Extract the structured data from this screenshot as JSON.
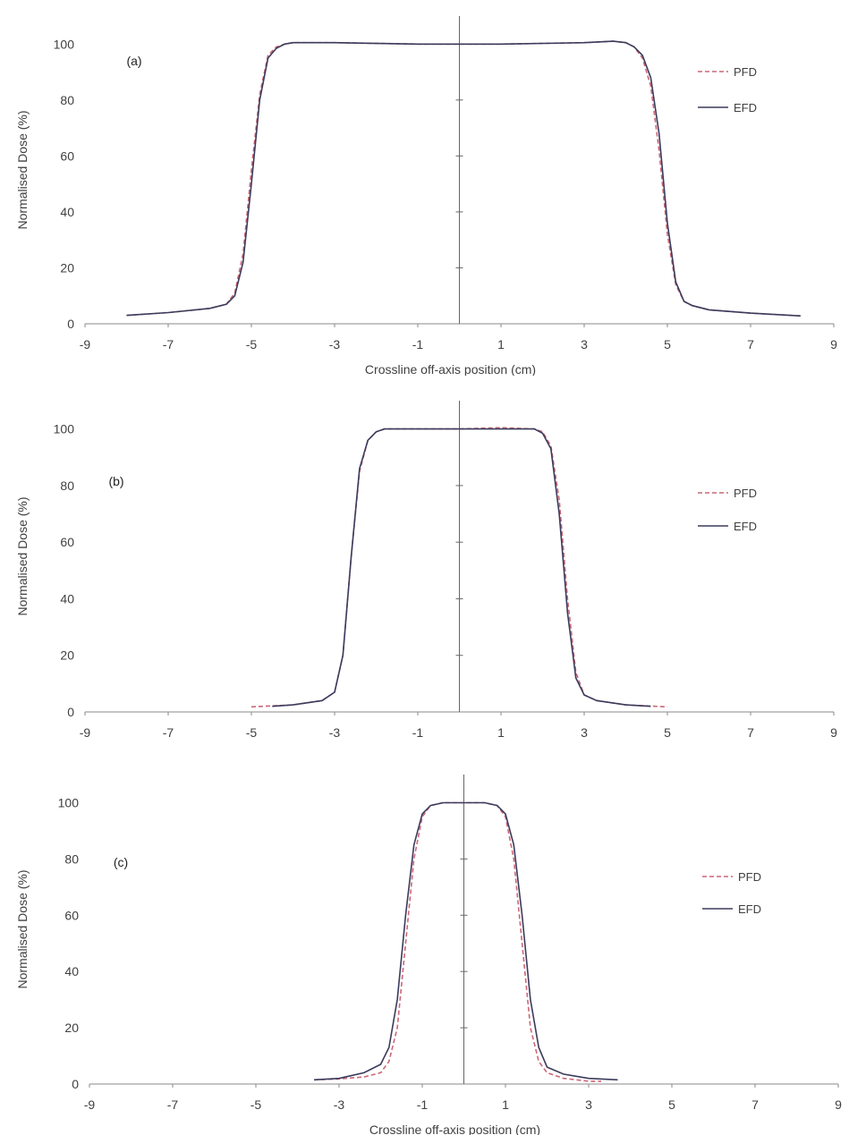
{
  "figure": {
    "panels": [
      {
        "label": "(a)",
        "xlabel": "Crossline off-axis position (cm)",
        "ylabel": "Normalised Dose (%)"
      },
      {
        "label": "(b)",
        "xlabel": "Crossline off-axis position (cm)",
        "ylabel": "Normalised Dose (%)"
      },
      {
        "label": "(c)",
        "xlabel": "Crossline off-axis position (cm)",
        "ylabel": "Normalised Dose (%)"
      }
    ]
  },
  "colors": {
    "pfd": "#cc6677",
    "efd": "#3b3b5c",
    "axis": "#888888"
  },
  "chart_data": [
    {
      "type": "line",
      "title": "(a)",
      "xlabel": "Crossline off-axis position (cm)",
      "ylabel": "Normalised Dose (%)",
      "xlim": [
        -9,
        9
      ],
      "ylim": [
        0,
        100
      ],
      "xticks": [
        -9,
        -7,
        -5,
        -3,
        -1,
        1,
        3,
        5,
        7,
        9
      ],
      "yticks": [
        0,
        20,
        40,
        60,
        80,
        100
      ],
      "legend": "right",
      "series": [
        {
          "name": "PFD",
          "style": "dashed",
          "x": [
            -8,
            -7,
            -6,
            -5.6,
            -5.4,
            -5.2,
            -5.0,
            -4.8,
            -4.6,
            -4.4,
            -4.2,
            -4.0,
            -3,
            -1,
            0,
            1,
            3,
            3.7,
            4.0,
            4.2,
            4.4,
            4.6,
            4.8,
            5.0,
            5.2,
            5.4,
            5.6,
            6,
            7,
            8.2
          ],
          "y": [
            3,
            4,
            5.5,
            7,
            11,
            25,
            55,
            82,
            96,
            99,
            100,
            100.5,
            100.5,
            100,
            100,
            100,
            100.5,
            101,
            100.5,
            99,
            95,
            85,
            62,
            32,
            14,
            8,
            6.5,
            5,
            3.8,
            2.8
          ]
        },
        {
          "name": "EFD",
          "style": "solid",
          "x": [
            -8,
            -7,
            -6,
            -5.6,
            -5.4,
            -5.2,
            -5.0,
            -4.8,
            -4.6,
            -4.4,
            -4.2,
            -4.0,
            -3,
            -1,
            0,
            1,
            3,
            3.7,
            4.0,
            4.2,
            4.4,
            4.6,
            4.8,
            5.0,
            5.2,
            5.4,
            5.6,
            6,
            7,
            8.2
          ],
          "y": [
            3,
            4,
            5.5,
            7,
            10,
            22,
            50,
            80,
            95,
            98.5,
            100,
            100.5,
            100.5,
            100,
            100,
            100,
            100.5,
            101,
            100.5,
            99,
            96,
            88,
            68,
            36,
            15,
            8,
            6.5,
            5,
            3.8,
            2.8
          ]
        }
      ]
    },
    {
      "type": "line",
      "title": "(b)",
      "xlabel": "Crossline off-axis position (cm)",
      "ylabel": "Normalised Dose (%)",
      "xlim": [
        -9,
        9
      ],
      "ylim": [
        0,
        100
      ],
      "xticks": [
        -9,
        -7,
        -5,
        -3,
        -1,
        1,
        3,
        5,
        7,
        9
      ],
      "yticks": [
        0,
        20,
        40,
        60,
        80,
        100
      ],
      "legend": "right",
      "series": [
        {
          "name": "PFD",
          "style": "dashed",
          "x": [
            -5,
            -4,
            -3.3,
            -3.0,
            -2.8,
            -2.6,
            -2.4,
            -2.2,
            -2.0,
            -1.8,
            -1,
            0,
            1,
            1.8,
            2.0,
            2.2,
            2.4,
            2.6,
            2.8,
            3.0,
            3.3,
            4,
            5
          ],
          "y": [
            1.8,
            2.5,
            4,
            7,
            20,
            55,
            85,
            96,
            99,
            100,
            100,
            100,
            100.5,
            100,
            99,
            94,
            75,
            40,
            14,
            6,
            4,
            2.5,
            1.8
          ]
        },
        {
          "name": "EFD",
          "style": "solid",
          "x": [
            -4.5,
            -4,
            -3.3,
            -3.0,
            -2.8,
            -2.6,
            -2.4,
            -2.2,
            -2.0,
            -1.8,
            -1,
            0,
            1,
            1.8,
            2.0,
            2.2,
            2.4,
            2.6,
            2.8,
            3.0,
            3.3,
            4,
            4.6
          ],
          "y": [
            2,
            2.5,
            4,
            7,
            20,
            55,
            86,
            96,
            99,
            100,
            100,
            100,
            100,
            100,
            98.5,
            93,
            70,
            35,
            12,
            6,
            4,
            2.5,
            2
          ]
        }
      ]
    },
    {
      "type": "line",
      "title": "(c)",
      "xlabel": "Crossline off-axis position (cm)",
      "ylabel": "Normalised Dose (%)",
      "xlim": [
        -9,
        9
      ],
      "ylim": [
        0,
        100
      ],
      "xticks": [
        -9,
        -7,
        -5,
        -3,
        -1,
        1,
        3,
        5,
        7,
        9
      ],
      "yticks": [
        0,
        20,
        40,
        60,
        80,
        100
      ],
      "legend": "right",
      "series": [
        {
          "name": "PFD",
          "style": "dashed",
          "x": [
            -3.6,
            -3,
            -2.4,
            -2.0,
            -1.8,
            -1.6,
            -1.4,
            -1.2,
            -1.0,
            -0.8,
            -0.5,
            0,
            0.5,
            0.8,
            1.0,
            1.2,
            1.4,
            1.6,
            1.8,
            2.0,
            2.4,
            3,
            3.3
          ],
          "y": [
            1.5,
            1.8,
            2.5,
            4,
            8,
            20,
            50,
            80,
            95,
            99,
            100,
            100,
            100,
            99,
            95,
            80,
            50,
            20,
            8,
            4,
            2,
            1,
            1
          ]
        },
        {
          "name": "EFD",
          "style": "solid",
          "x": [
            -3.6,
            -3,
            -2.4,
            -2.0,
            -1.8,
            -1.6,
            -1.4,
            -1.2,
            -1.0,
            -0.8,
            -0.5,
            0,
            0.5,
            0.8,
            1.0,
            1.2,
            1.4,
            1.6,
            1.8,
            2.0,
            2.4,
            3,
            3.7
          ],
          "y": [
            1.5,
            2,
            4,
            7,
            13,
            30,
            60,
            85,
            96,
            99,
            100,
            100,
            100,
            99,
            96,
            85,
            60,
            30,
            13,
            6,
            3.5,
            2,
            1.5
          ]
        }
      ]
    }
  ]
}
